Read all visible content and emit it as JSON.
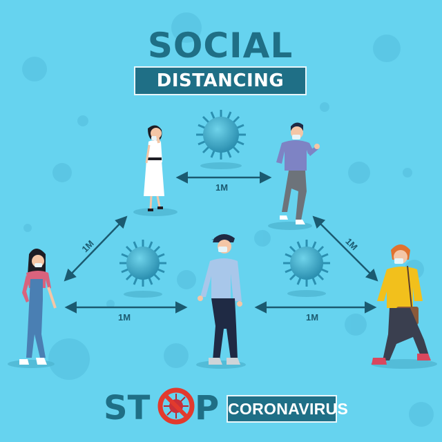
{
  "title": {
    "line1": "SOCIAL",
    "line2": "DISTANCING"
  },
  "distances": {
    "top": "1M",
    "left_diagonal": "1M",
    "right_diagonal": "1M",
    "bottom_left": "1M",
    "bottom_right": "1M"
  },
  "footer": {
    "stop_part1": "ST",
    "stop_part2": "P",
    "virus_word": "CORONAVIRUS"
  },
  "colors": {
    "background": "#66d3ef",
    "primary": "#1f6f86",
    "virus": "#3aa6c4",
    "stop_red": "#e23a2d"
  }
}
